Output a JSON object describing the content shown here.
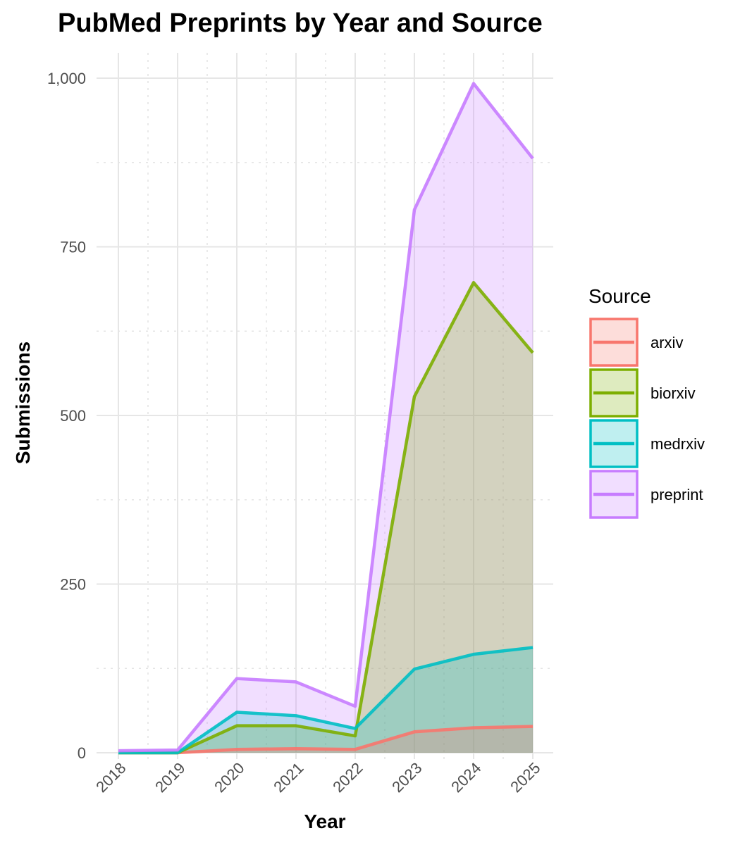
{
  "chart_data": {
    "type": "area",
    "title": "PubMed Preprints by Year and Source",
    "xlabel": "Year",
    "ylabel": "Submissions",
    "x": [
      "2018",
      "2019",
      "2020",
      "2021",
      "2022",
      "2023",
      "2024",
      "2025"
    ],
    "ylim": [
      0,
      1000
    ],
    "yticks": [
      0,
      250,
      500,
      750,
      1000
    ],
    "ytick_labels": [
      "0",
      "250",
      "500",
      "750",
      "1,000"
    ],
    "grid": true,
    "legend_title": "Source",
    "legend_position": "right",
    "series": [
      {
        "name": "arxiv",
        "color": "#F8766D",
        "values": [
          0,
          0,
          5,
          6,
          5,
          31,
          37,
          39
        ]
      },
      {
        "name": "biorxiv",
        "color": "#7CAE00",
        "values": [
          0,
          0,
          40,
          40,
          25,
          528,
          697,
          593
        ]
      },
      {
        "name": "medrxiv",
        "color": "#00BFC4",
        "values": [
          0,
          0,
          60,
          55,
          36,
          124,
          146,
          156
        ]
      },
      {
        "name": "preprint",
        "color": "#C77CFF",
        "values": [
          3,
          4,
          110,
          105,
          69,
          805,
          992,
          881
        ]
      }
    ]
  }
}
